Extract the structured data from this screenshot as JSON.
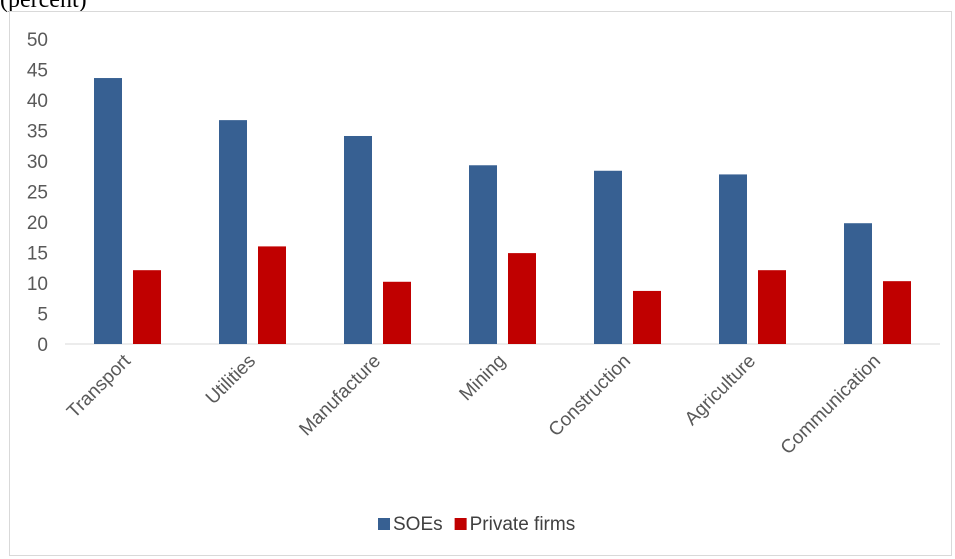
{
  "caption": "(percent)",
  "chart_data": {
    "type": "bar",
    "categories": [
      "Transport",
      "Utilities",
      "Manufacture",
      "Mining",
      "Construction",
      "Agriculture",
      "Communication"
    ],
    "series": [
      {
        "name": "SOEs",
        "color": "#376092",
        "values": [
          43.6,
          36.7,
          34.1,
          29.3,
          28.4,
          27.8,
          19.8
        ]
      },
      {
        "name": "Private firms",
        "color": "#c00000",
        "values": [
          12.1,
          16.0,
          10.2,
          14.9,
          8.7,
          12.1,
          10.3
        ]
      }
    ],
    "ylim": [
      0,
      50
    ],
    "yticks": [
      0,
      5,
      10,
      15,
      20,
      25,
      30,
      35,
      40,
      45,
      50
    ],
    "grid": false,
    "legend_position": "bottom"
  }
}
